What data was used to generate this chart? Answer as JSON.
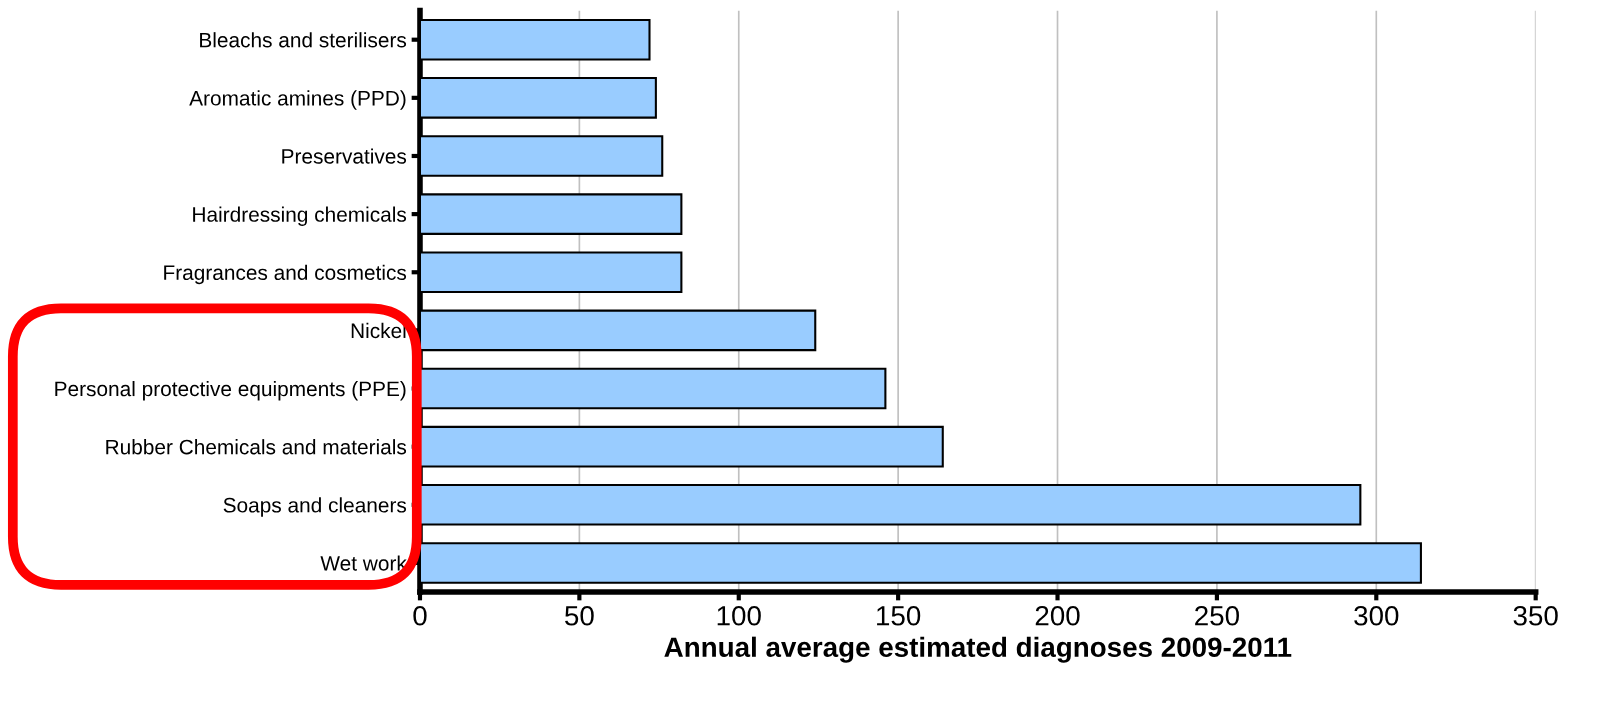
{
  "chart_data": {
    "type": "bar",
    "orientation": "horizontal",
    "xlabel": "Annual average estimated diagnoses 2009-2011",
    "categories": [
      "Bleachs and sterilisers",
      "Aromatic amines (PPD)",
      "Preservatives",
      "Hairdressing chemicals",
      "Fragrances and cosmetics",
      "Nickel",
      "Personal protective equipments (PPE)",
      "Rubber Chemicals and materials",
      "Soaps and cleaners",
      "Wet work"
    ],
    "values": [
      72,
      74,
      76,
      82,
      82,
      124,
      146,
      164,
      295,
      314
    ],
    "color": "#99ccff",
    "xlim": [
      0,
      350
    ],
    "xticks": [
      0,
      50,
      100,
      150,
      200,
      250,
      300,
      350
    ],
    "grid": "x"
  }
}
